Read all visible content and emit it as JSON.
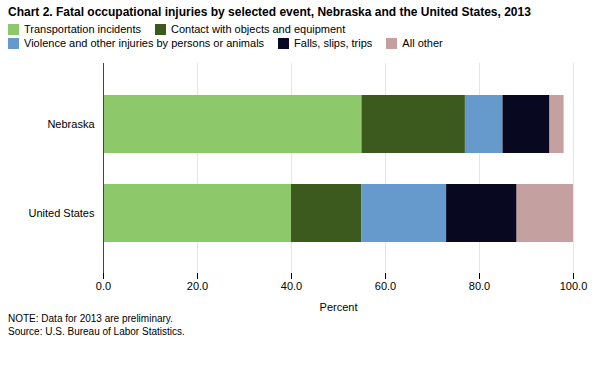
{
  "chart_data": {
    "type": "bar",
    "orientation": "horizontal",
    "stacked": true,
    "title": "Chart 2.  Fatal occupational injuries by selected event, Nebraska and the United States, 2013",
    "categories": [
      "United States",
      "Nebraska"
    ],
    "series": [
      {
        "name": "Transportation incidents",
        "color": "#8dc96b",
        "values": [
          40.0,
          55.0
        ]
      },
      {
        "name": "Contact with objects and equipment",
        "color": "#3d5a1e",
        "values": [
          15.0,
          22.0
        ]
      },
      {
        "name": "Violence and other injuries by persons or animals",
        "color": "#6699cc",
        "values": [
          18.0,
          8.0
        ]
      },
      {
        "name": "Falls, slips, trips",
        "color": "#080820",
        "values": [
          15.0,
          10.0
        ]
      },
      {
        "name": "All other",
        "color": "#c4a0a0",
        "values": [
          12.0,
          3.0
        ]
      }
    ],
    "xlabel": "Percent",
    "xlim": [
      0,
      100
    ],
    "xticks": [
      {
        "value": 0,
        "label": "0.0"
      },
      {
        "value": 20,
        "label": "20.0"
      },
      {
        "value": 40,
        "label": "40.0"
      },
      {
        "value": 60,
        "label": "60.0"
      },
      {
        "value": 80,
        "label": "80.0"
      },
      {
        "value": 100,
        "label": "100.0"
      }
    ],
    "grid": true,
    "legend": "top",
    "note": "NOTE: Data for 2013 are preliminary.\nSource: U.S. Bureau of Labor Statistics."
  }
}
